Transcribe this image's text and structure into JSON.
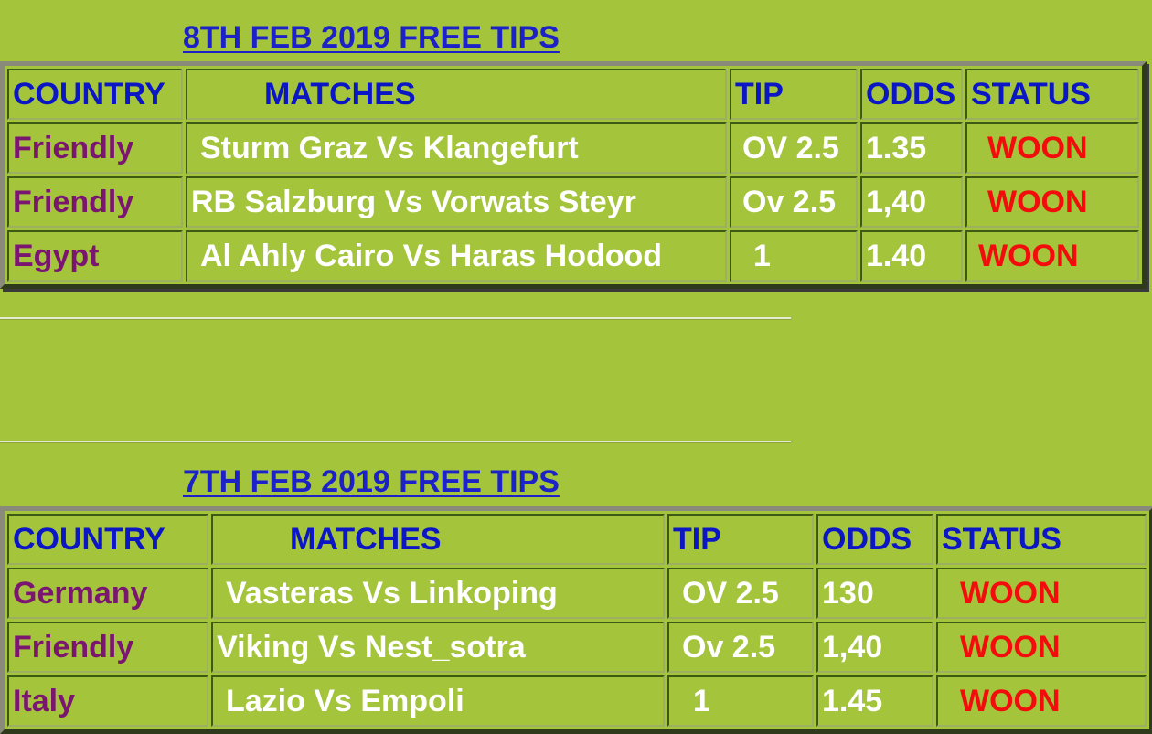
{
  "sections": [
    {
      "title": "8TH FEB 2019 FREE TIPS",
      "headers": [
        "COUNTRY",
        "MATCHES",
        "TIP",
        "ODDS",
        "STATUS"
      ],
      "rows": [
        {
          "country": "Friendly",
          "match": "Sturm Graz Vs Klangefurt",
          "tip": "OV 2.5",
          "odds": "1.35",
          "status": "WOON"
        },
        {
          "country": "Friendly",
          "match": "RB Salzburg Vs Vorwats Steyr",
          "tip": "Ov 2.5",
          "odds": "1,40",
          "status": "WOON"
        },
        {
          "country": "Egypt",
          "match": "Al Ahly Cairo Vs Haras Hodood",
          "tip": "1",
          "odds": "1.40",
          "status": "WOON"
        }
      ]
    },
    {
      "title": "7TH FEB 2019 FREE TIPS",
      "headers": [
        "COUNTRY",
        "MATCHES",
        "TIP",
        "ODDS",
        "STATUS"
      ],
      "rows": [
        {
          "country": "Germany",
          "match": "Vasteras Vs Linkoping",
          "tip": "OV 2.5",
          "odds": "130",
          "status": "WOON"
        },
        {
          "country": "Friendly",
          "match": "Viking Vs Nest_sotra",
          "tip": "Ov 2.5",
          "odds": "1,40",
          "status": "WOON"
        },
        {
          "country": "Italy",
          "match": "Lazio Vs Empoli",
          "tip": "1",
          "odds": "1.45",
          "status": "WOON"
        }
      ]
    }
  ],
  "colors": {
    "background": "#a3c43b",
    "header": "#0b16c4",
    "country": "#7a1670",
    "status": "#f20c0c",
    "title": "#1c22c8"
  }
}
